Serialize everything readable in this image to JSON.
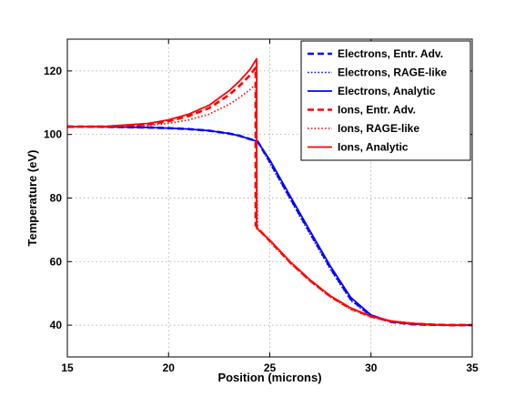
{
  "chart_data": {
    "type": "line",
    "title": "",
    "xlabel": "Position (microns)",
    "ylabel": "Temperature (eV)",
    "xlim": [
      15,
      35
    ],
    "ylim": [
      30,
      130
    ],
    "xticks": [
      15,
      20,
      25,
      30,
      35
    ],
    "yticks": [
      40,
      60,
      80,
      100,
      120
    ],
    "grid": true,
    "legend_position": "top-right",
    "series": [
      {
        "name": "Electrons, Entr. Adv.",
        "color": "#0000ff",
        "style": "dashed",
        "x": [
          15,
          17,
          19,
          20,
          21,
          22,
          23,
          23.5,
          24,
          24.3,
          24.4,
          25,
          26,
          27,
          28,
          29,
          30,
          31,
          32,
          33,
          34,
          35
        ],
        "y": [
          102.5,
          102.4,
          102.2,
          102.0,
          101.7,
          101.2,
          100.3,
          99.6,
          98.6,
          98.0,
          97.8,
          91.5,
          80.2,
          69.0,
          58.0,
          48.2,
          43.0,
          41.0,
          40.3,
          40.1,
          40.0,
          40.0
        ]
      },
      {
        "name": "Electrons, RAGE-like",
        "color": "#0000ff",
        "style": "dotted",
        "x": [
          15,
          17,
          19,
          20,
          21,
          22,
          23,
          23.5,
          24,
          24.3,
          24.4,
          25,
          26,
          27,
          28,
          29,
          30,
          31,
          32,
          33,
          34,
          35
        ],
        "y": [
          102.5,
          102.4,
          102.2,
          102.0,
          101.7,
          101.2,
          100.3,
          99.6,
          98.6,
          98.0,
          97.8,
          91.0,
          79.7,
          68.5,
          57.5,
          47.8,
          42.8,
          41.0,
          40.3,
          40.1,
          40.0,
          40.0
        ]
      },
      {
        "name": "Electrons, Analytic",
        "color": "#0000ff",
        "style": "solid",
        "x": [
          15,
          17,
          19,
          20,
          21,
          22,
          23,
          23.5,
          24,
          24.3,
          24.4,
          25,
          26,
          27,
          28,
          29,
          30,
          31,
          32,
          33,
          34,
          35
        ],
        "y": [
          102.5,
          102.4,
          102.2,
          102.0,
          101.7,
          101.2,
          100.3,
          99.6,
          98.6,
          98.0,
          97.8,
          92.0,
          80.7,
          69.5,
          58.5,
          48.7,
          43.2,
          41.1,
          40.4,
          40.1,
          40.0,
          40.0
        ]
      },
      {
        "name": "Ions, Entr. Adv.",
        "color": "#ff0000",
        "style": "dashed",
        "x": [
          15,
          17,
          19,
          20,
          21,
          22,
          23,
          23.5,
          24,
          24.3,
          24.3,
          24.4,
          25,
          26,
          27,
          28,
          29,
          30,
          31,
          32,
          33,
          34,
          35
        ],
        "y": [
          102.4,
          102.5,
          103.2,
          104.2,
          105.8,
          108.3,
          112.5,
          115.3,
          118.5,
          121.0,
          71.5,
          70.5,
          66.5,
          59.8,
          54.0,
          49.0,
          45.2,
          42.7,
          41.2,
          40.5,
          40.2,
          40.0,
          40.0
        ]
      },
      {
        "name": "Ions, RAGE-like",
        "color": "#ff0000",
        "style": "dotted",
        "x": [
          15,
          17,
          19,
          20,
          21,
          22,
          23,
          23.5,
          24,
          24.3,
          24.4,
          25,
          26,
          27,
          28,
          29,
          30,
          31,
          32,
          33,
          34,
          35
        ],
        "y": [
          102.4,
          102.4,
          102.8,
          103.5,
          104.6,
          106.4,
          109.5,
          111.6,
          114.0,
          115.8,
          70.5,
          66.3,
          59.6,
          53.8,
          48.8,
          45.0,
          42.6,
          41.1,
          40.5,
          40.2,
          40.0,
          40.0
        ]
      },
      {
        "name": "Ions, Analytic",
        "color": "#ff0000",
        "style": "solid",
        "x": [
          15,
          17,
          19,
          20,
          21,
          22,
          23,
          23.5,
          24,
          24.35,
          24.35,
          25,
          26,
          27,
          28,
          29,
          30,
          31,
          32,
          33,
          34,
          35
        ],
        "y": [
          102.5,
          102.6,
          103.5,
          104.6,
          106.4,
          109.2,
          113.8,
          116.8,
          120.3,
          123.8,
          70.5,
          66.8,
          60.0,
          54.2,
          49.2,
          45.4,
          42.8,
          41.3,
          40.6,
          40.2,
          40.0,
          40.0
        ]
      }
    ]
  }
}
